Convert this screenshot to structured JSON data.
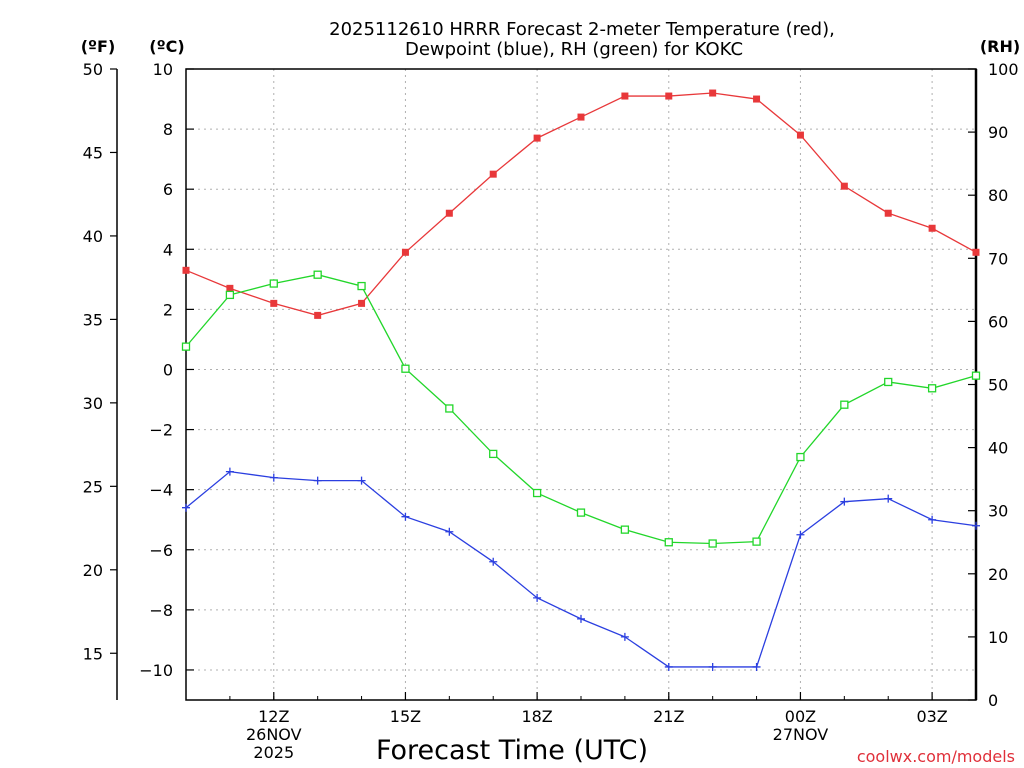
{
  "chart_data": {
    "type": "line",
    "title": [
      "2025112610 HRRR Forecast 2-meter Temperature (red),",
      "Dewpoint (blue), RH (green) for KOKC"
    ],
    "xlabel": "Forecast Time (UTC)",
    "units": {
      "fahrenheit": "(ºF)",
      "celsius": "(ºC)",
      "rh": "(RH)"
    },
    "x_hours": [
      10,
      11,
      12,
      13,
      14,
      15,
      16,
      17,
      18,
      19,
      20,
      21,
      22,
      23,
      24,
      25,
      26,
      27,
      28
    ],
    "x_range": [
      10,
      28
    ],
    "x_ticks": [
      {
        "hour": 12,
        "lines": [
          "12Z",
          "26NOV",
          "2025"
        ]
      },
      {
        "hour": 15,
        "lines": [
          "15Z"
        ]
      },
      {
        "hour": 18,
        "lines": [
          "18Z"
        ]
      },
      {
        "hour": 21,
        "lines": [
          "21Z"
        ]
      },
      {
        "hour": 24,
        "lines": [
          "00Z",
          "27NOV"
        ]
      },
      {
        "hour": 27,
        "lines": [
          "03Z"
        ]
      }
    ],
    "y_celsius": {
      "range": [
        -11,
        10
      ],
      "ticks": [
        10,
        8,
        6,
        4,
        2,
        0,
        -2,
        -4,
        -6,
        -8,
        -10
      ]
    },
    "y_fahrenheit": {
      "ticks": [
        50,
        45,
        40,
        35,
        30,
        25,
        20,
        15
      ]
    },
    "y_rh": {
      "range": [
        0,
        100
      ],
      "ticks": [
        100,
        90,
        80,
        70,
        60,
        50,
        40,
        30,
        20,
        10,
        0
      ]
    },
    "series": [
      {
        "name": "Temperature",
        "unit": "C",
        "color": "#e8383a",
        "marker": "filled-square",
        "values": [
          3.3,
          2.7,
          2.2,
          1.8,
          2.2,
          3.9,
          5.2,
          6.5,
          7.7,
          8.4,
          9.1,
          9.1,
          9.2,
          9.0,
          7.8,
          6.1,
          5.2,
          4.7,
          3.9
        ]
      },
      {
        "name": "Dewpoint",
        "unit": "C",
        "color": "#2b3fe0",
        "marker": "plus",
        "values": [
          -4.6,
          -3.4,
          -3.6,
          -3.7,
          -3.7,
          -4.9,
          -5.4,
          -6.4,
          -7.6,
          -8.3,
          -8.9,
          -9.9,
          -9.9,
          -9.9,
          -5.5,
          -4.4,
          -4.3,
          -5.0,
          -5.2
        ]
      },
      {
        "name": "RH",
        "unit": "%",
        "color": "#22d62a",
        "marker": "open-square",
        "values": [
          56.0,
          64.2,
          66.0,
          67.4,
          65.6,
          52.5,
          46.2,
          39.0,
          32.8,
          29.7,
          27.0,
          25.0,
          24.8,
          25.1,
          38.5,
          46.8,
          50.4,
          49.4,
          51.4
        ]
      }
    ]
  },
  "credit": "coolwx.com/models"
}
